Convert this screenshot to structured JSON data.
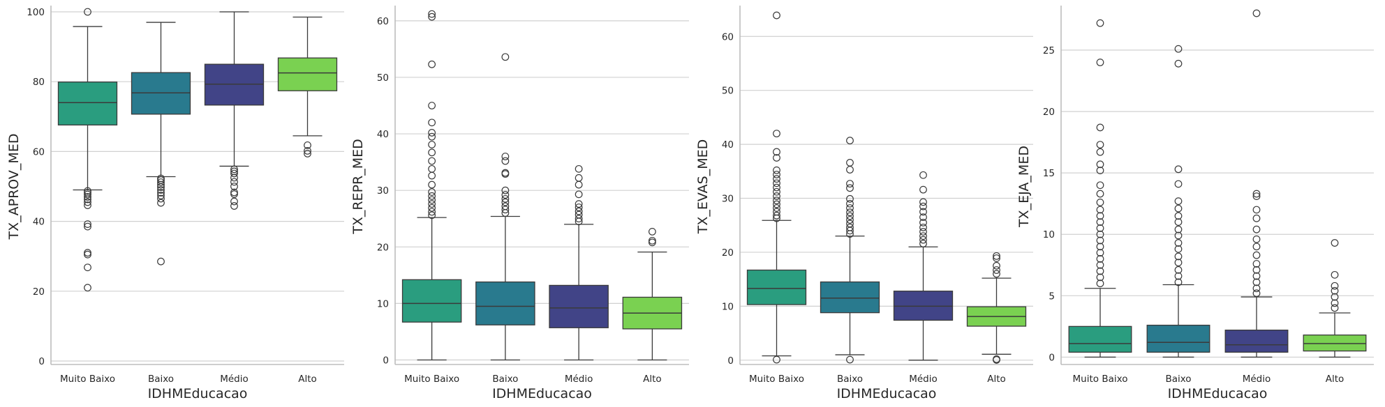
{
  "chart_data": [
    {
      "type": "boxplot",
      "xlabel": "IDHMEducacao",
      "ylabel": "TX_APROV_MED",
      "categories": [
        "Muito Baixo",
        "Baixo",
        "Médio",
        "Alto"
      ],
      "ylim": [
        -1,
        101
      ],
      "yticks": [
        0,
        20,
        40,
        60,
        80,
        100
      ],
      "grid": "y",
      "boxes": [
        {
          "whislo": 49.0,
          "q1": 67.6,
          "med": 74.0,
          "q3": 79.9,
          "whishi": 95.8,
          "fliers": [
            100.0,
            48.7,
            48.2,
            47.7,
            47.0,
            46.3,
            45.5,
            44.6,
            39.2,
            38.5,
            31.0,
            30.5,
            26.8,
            21.0
          ]
        },
        {
          "whislo": 52.8,
          "q1": 70.7,
          "med": 76.8,
          "q3": 82.6,
          "whishi": 97.0,
          "fliers": [
            52.3,
            51.8,
            51.2,
            50.5,
            49.8,
            49.0,
            48.2,
            47.4,
            46.5,
            45.3,
            28.5
          ]
        },
        {
          "whislo": 55.8,
          "q1": 73.3,
          "med": 79.3,
          "q3": 85.0,
          "whishi": 100.0,
          "fliers": [
            54.9,
            54.3,
            53.7,
            52.5,
            51.3,
            50.0,
            48.3,
            47.8,
            45.7,
            44.4
          ]
        },
        {
          "whislo": 64.5,
          "q1": 77.4,
          "med": 82.5,
          "q3": 86.8,
          "whishi": 98.5,
          "fliers": [
            61.8,
            60.2,
            59.4
          ]
        }
      ]
    },
    {
      "type": "boxplot",
      "xlabel": "IDHMEducacao",
      "ylabel": "TX_REPR_MED",
      "categories": [
        "Muito Baixo",
        "Baixo",
        "Médio",
        "Alto"
      ],
      "ylim": [
        -0.8,
        62.2
      ],
      "yticks": [
        0,
        10,
        20,
        30,
        40,
        50,
        60
      ],
      "grid": "y",
      "boxes": [
        {
          "whislo": 0,
          "q1": 6.7,
          "med": 10.0,
          "q3": 14.2,
          "whishi": 25.2,
          "fliers": [
            61.2,
            60.7,
            52.3,
            45.0,
            42.0,
            40.2,
            39.5,
            38.1,
            36.7,
            35.2,
            33.8,
            32.6,
            31.0,
            29.7,
            29.0,
            28.3,
            27.6,
            26.9,
            26.2,
            25.6
          ]
        },
        {
          "whislo": 0,
          "q1": 6.2,
          "med": 9.5,
          "q3": 13.8,
          "whishi": 25.4,
          "fliers": [
            53.6,
            36.0,
            35.2,
            33.1,
            32.9,
            30.0,
            29.2,
            28.5,
            27.9,
            27.2,
            26.6,
            26.0
          ]
        },
        {
          "whislo": 0,
          "q1": 5.7,
          "med": 9.2,
          "q3": 13.2,
          "whishi": 24.0,
          "fliers": [
            33.8,
            32.2,
            31.0,
            29.3,
            27.6,
            27.0,
            26.3,
            25.7,
            25.0,
            24.5
          ]
        },
        {
          "whislo": 0,
          "q1": 5.5,
          "med": 8.3,
          "q3": 11.1,
          "whishi": 19.1,
          "fliers": [
            22.7,
            21.1,
            20.8
          ]
        }
      ]
    },
    {
      "type": "boxplot",
      "xlabel": "IDHMEducacao",
      "ylabel": "TX_EVAS_MED",
      "categories": [
        "Muito Baixo",
        "Baixo",
        "Médio",
        "Alto"
      ],
      "ylim": [
        -0.8,
        65.2
      ],
      "yticks": [
        0,
        10,
        20,
        30,
        40,
        50,
        60
      ],
      "grid": "y",
      "boxes": [
        {
          "whislo": 0.8,
          "q1": 10.3,
          "med": 13.3,
          "q3": 16.7,
          "whishi": 25.9,
          "fliers": [
            63.9,
            42.0,
            38.6,
            37.5,
            35.2,
            34.4,
            33.6,
            32.8,
            32.0,
            31.2,
            30.4,
            29.6,
            28.9,
            28.2,
            27.5,
            26.8,
            26.3,
            0.1
          ]
        },
        {
          "whislo": 1.0,
          "q1": 8.8,
          "med": 11.5,
          "q3": 14.5,
          "whishi": 23.0,
          "fliers": [
            40.7,
            36.6,
            35.3,
            32.7,
            31.9,
            29.9,
            29.0,
            28.2,
            27.4,
            26.7,
            26.0,
            25.3,
            24.6,
            24.0,
            23.4,
            0.1
          ]
        },
        {
          "whislo": 0,
          "q1": 7.4,
          "med": 10.0,
          "q3": 12.8,
          "whishi": 21.0,
          "fliers": [
            34.3,
            31.6,
            29.3,
            28.5,
            27.5,
            26.5,
            25.5,
            24.6,
            23.8,
            23.0,
            22.3,
            21.6
          ]
        },
        {
          "whislo": 1.1,
          "q1": 6.3,
          "med": 8.1,
          "q3": 9.9,
          "whishi": 15.2,
          "fliers": [
            19.3,
            18.9,
            17.5,
            16.7,
            16.0,
            0.2,
            0.05
          ]
        }
      ]
    },
    {
      "type": "boxplot",
      "xlabel": "IDHMEducacao",
      "ylabel": "TX_EJA_MED",
      "categories": [
        "Muito Baixo",
        "Baixo",
        "Médio",
        "Alto"
      ],
      "ylim": [
        -0.6,
        28.4
      ],
      "yticks": [
        0,
        5,
        10,
        15,
        20,
        25
      ],
      "grid": "y",
      "boxes": [
        {
          "whislo": 0,
          "q1": 0.4,
          "med": 1.1,
          "q3": 2.5,
          "whishi": 5.6,
          "fliers": [
            27.2,
            24.0,
            18.7,
            17.3,
            16.7,
            15.7,
            15.2,
            14.0,
            13.3,
            12.6,
            12.0,
            11.5,
            11.0,
            10.5,
            10.0,
            9.5,
            9.0,
            8.5,
            8.0,
            7.5,
            7.0,
            6.5,
            6.0
          ]
        },
        {
          "whislo": 0,
          "q1": 0.4,
          "med": 1.2,
          "q3": 2.6,
          "whishi": 5.9,
          "fliers": [
            25.1,
            23.9,
            15.3,
            14.1,
            12.7,
            12.1,
            11.5,
            11.0,
            10.4,
            9.9,
            9.3,
            8.8,
            8.2,
            7.7,
            7.1,
            6.6,
            6.1
          ]
        },
        {
          "whislo": 0,
          "q1": 0.4,
          "med": 1.0,
          "q3": 2.2,
          "whishi": 4.9,
          "fliers": [
            28.0,
            13.3,
            13.1,
            12.0,
            11.3,
            10.4,
            9.6,
            9.0,
            8.3,
            7.6,
            7.1,
            6.6,
            6.1,
            5.6,
            5.2
          ]
        },
        {
          "whislo": 0,
          "q1": 0.5,
          "med": 1.1,
          "q3": 1.8,
          "whishi": 3.6,
          "fliers": [
            9.3,
            6.7,
            5.8,
            5.4,
            4.9,
            4.4,
            4.0
          ]
        }
      ]
    }
  ],
  "palette": [
    "#2a9d7f",
    "#297a8e",
    "#414487",
    "#7ad151"
  ]
}
